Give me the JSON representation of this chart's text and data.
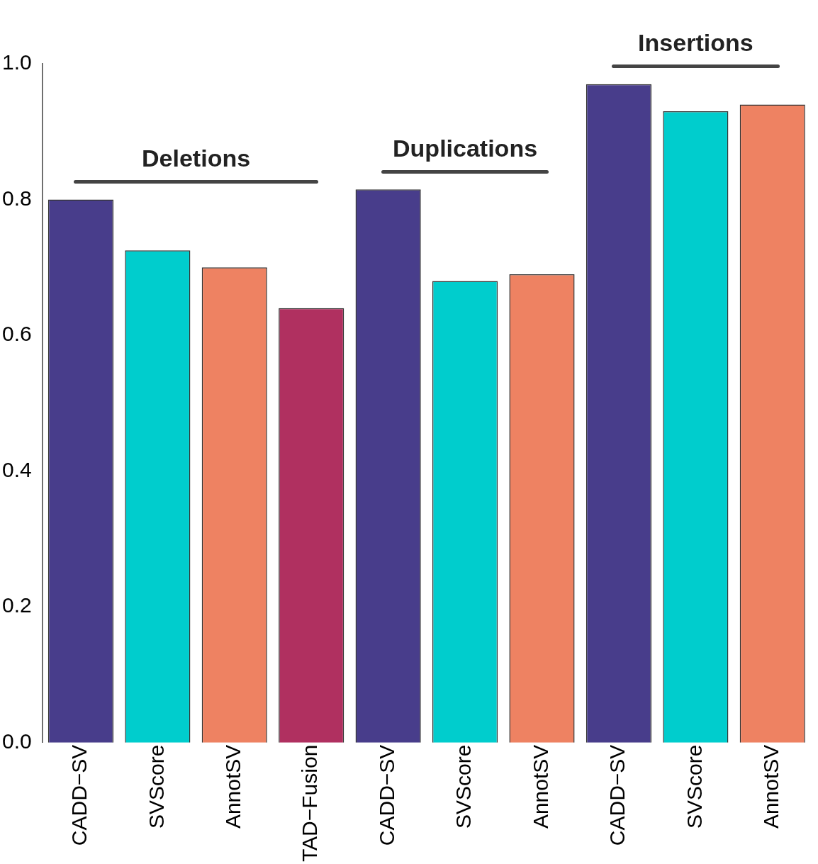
{
  "chart_data": {
    "type": "bar",
    "categories": [
      "CADD−SV",
      "SVScore",
      "AnnotSV",
      "TAD−Fusion",
      "CADD−SV",
      "SVScore",
      "AnnotSV",
      "CADD−SV",
      "SVScore",
      "AnnotSV"
    ],
    "values": [
      0.8,
      0.725,
      0.7,
      0.64,
      0.815,
      0.68,
      0.69,
      0.97,
      0.93,
      0.94
    ],
    "colors": [
      "#483d8b",
      "#00cdcd",
      "#ee8262",
      "#b03060",
      "#483d8b",
      "#00cdcd",
      "#ee8262",
      "#483d8b",
      "#00cdcd",
      "#ee8262"
    ],
    "ylim": [
      0,
      1
    ],
    "yticks": [
      {
        "value": 0,
        "label": "0.0"
      },
      0.2,
      0.4,
      0.6,
      0.8,
      {
        "value": 1,
        "label": "1.0"
      }
    ],
    "annotations": [
      "Deletions",
      "Duplications",
      "Insertions"
    ],
    "grid": false,
    "legend": false
  }
}
